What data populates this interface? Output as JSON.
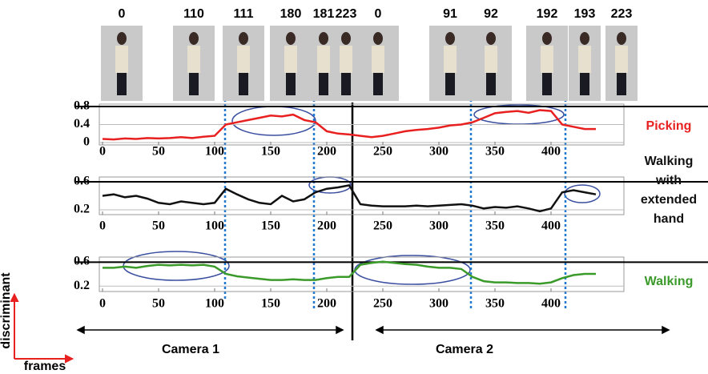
{
  "thumbnails": [
    "0",
    "110",
    "111",
    "180",
    "181",
    "223",
    "0",
    "91",
    "92",
    "192",
    "193",
    "223"
  ],
  "camera_labels": [
    "Camera 1",
    "Camera 2"
  ],
  "axis_labels": {
    "y": "discriminant",
    "x": "frames"
  },
  "chart_data": [
    {
      "type": "line",
      "xlim": [
        0,
        465
      ],
      "ylim": [
        0,
        0.8
      ],
      "yticks": [
        0,
        0.4,
        0.8
      ],
      "xticks": [
        0,
        50,
        100,
        150,
        200,
        250,
        300,
        350,
        400
      ],
      "x": [
        0,
        10,
        20,
        30,
        40,
        50,
        60,
        70,
        80,
        90,
        100,
        110,
        120,
        130,
        140,
        150,
        160,
        170,
        180,
        190,
        200,
        210,
        220,
        230,
        240,
        250,
        260,
        270,
        280,
        290,
        300,
        310,
        320,
        330,
        340,
        350,
        360,
        370,
        380,
        390,
        400,
        410,
        420,
        430,
        440
      ],
      "series": [
        {
          "name": "Picking",
          "color": "#e8201f",
          "values": [
            0.08,
            0.07,
            0.09,
            0.08,
            0.1,
            0.09,
            0.1,
            0.12,
            0.1,
            0.13,
            0.15,
            0.4,
            0.45,
            0.5,
            0.55,
            0.6,
            0.58,
            0.62,
            0.5,
            0.45,
            0.25,
            0.2,
            0.18,
            0.15,
            0.12,
            0.15,
            0.2,
            0.25,
            0.28,
            0.3,
            0.33,
            0.38,
            0.4,
            0.45,
            0.55,
            0.65,
            0.68,
            0.7,
            0.66,
            0.72,
            0.7,
            0.4,
            0.35,
            0.3,
            0.3
          ]
        }
      ]
    },
    {
      "type": "line",
      "xlim": [
        0,
        465
      ],
      "ylim": [
        0.15,
        0.65
      ],
      "yticks": [
        0.2,
        0.6
      ],
      "xticks": [
        0,
        50,
        100,
        150,
        200,
        250,
        300,
        350,
        400
      ],
      "x": [
        0,
        10,
        20,
        30,
        40,
        50,
        60,
        70,
        80,
        90,
        100,
        110,
        120,
        130,
        140,
        150,
        160,
        170,
        180,
        190,
        200,
        210,
        220,
        230,
        240,
        250,
        260,
        270,
        280,
        290,
        300,
        310,
        320,
        330,
        340,
        350,
        360,
        370,
        380,
        390,
        400,
        410,
        420,
        430,
        440
      ],
      "series": [
        {
          "name": "Walking with extended hand",
          "color": "#111111",
          "values": [
            0.4,
            0.42,
            0.38,
            0.4,
            0.36,
            0.3,
            0.28,
            0.32,
            0.3,
            0.28,
            0.3,
            0.5,
            0.42,
            0.35,
            0.3,
            0.28,
            0.4,
            0.32,
            0.35,
            0.45,
            0.5,
            0.52,
            0.55,
            0.28,
            0.26,
            0.25,
            0.25,
            0.25,
            0.26,
            0.25,
            0.26,
            0.27,
            0.28,
            0.26,
            0.22,
            0.24,
            0.23,
            0.25,
            0.22,
            0.18,
            0.22,
            0.45,
            0.48,
            0.45,
            0.42
          ]
        }
      ]
    },
    {
      "type": "line",
      "xlim": [
        0,
        465
      ],
      "ylim": [
        0.15,
        0.65
      ],
      "yticks": [
        0.2,
        0.6
      ],
      "xticks": [
        0,
        50,
        100,
        150,
        200,
        250,
        300,
        350,
        400
      ],
      "x": [
        0,
        10,
        20,
        30,
        40,
        50,
        60,
        70,
        80,
        90,
        100,
        110,
        120,
        130,
        140,
        150,
        160,
        170,
        180,
        190,
        200,
        210,
        220,
        230,
        240,
        250,
        260,
        270,
        280,
        290,
        300,
        310,
        320,
        330,
        340,
        350,
        360,
        370,
        380,
        390,
        400,
        410,
        420,
        430,
        440
      ],
      "series": [
        {
          "name": "Walking",
          "color": "#3a9a2a",
          "values": [
            0.5,
            0.5,
            0.52,
            0.5,
            0.53,
            0.55,
            0.54,
            0.55,
            0.54,
            0.55,
            0.52,
            0.4,
            0.36,
            0.34,
            0.32,
            0.3,
            0.3,
            0.31,
            0.3,
            0.3,
            0.33,
            0.35,
            0.35,
            0.55,
            0.58,
            0.6,
            0.58,
            0.56,
            0.55,
            0.52,
            0.5,
            0.5,
            0.48,
            0.35,
            0.28,
            0.26,
            0.26,
            0.25,
            0.25,
            0.24,
            0.26,
            0.33,
            0.38,
            0.4,
            0.4
          ]
        }
      ]
    }
  ]
}
